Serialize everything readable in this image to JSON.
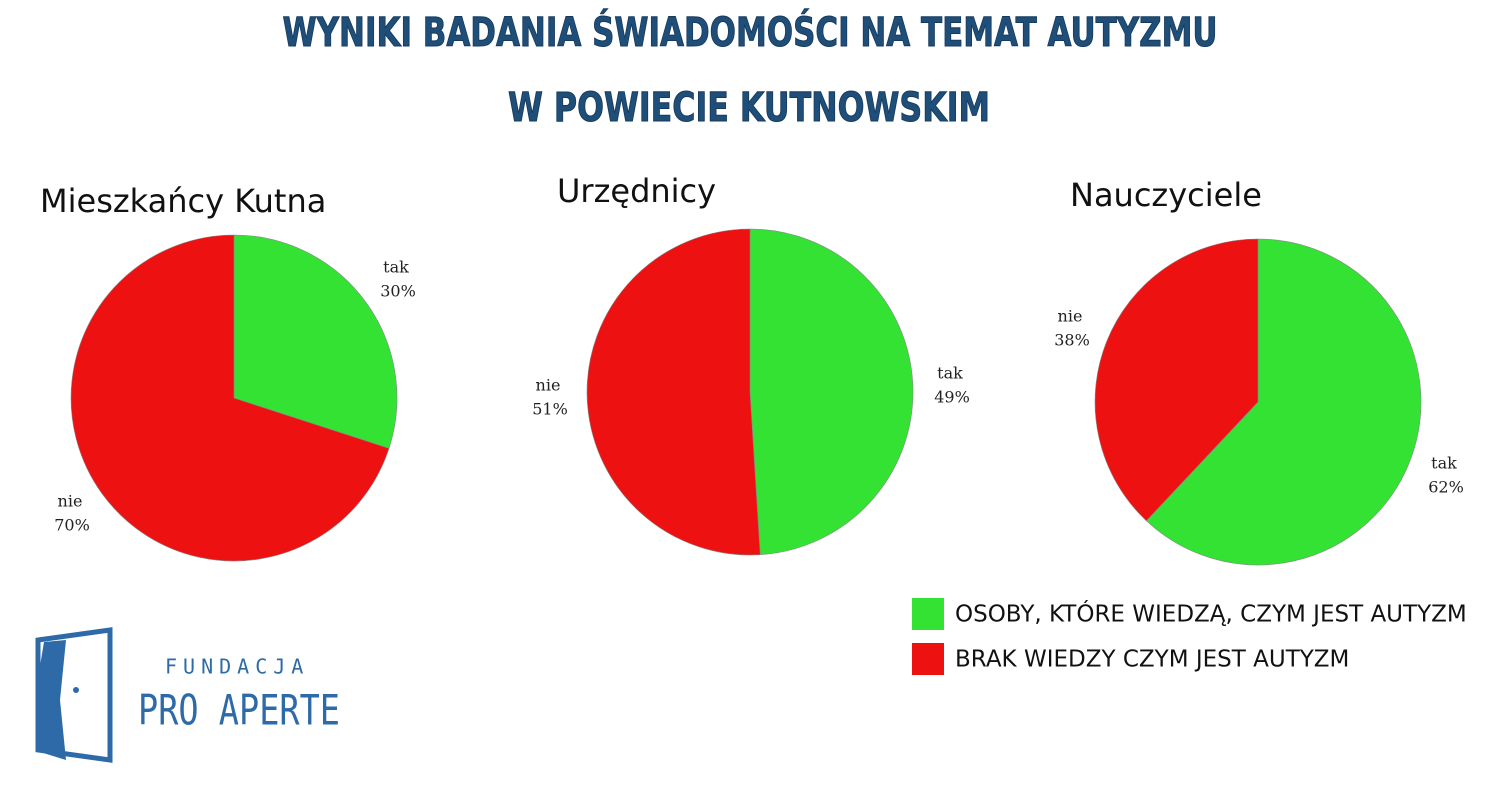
{
  "title_lines": [
    "WYNIKI BADANIA ŚWIADOMOŚCI NA TEMAT AUTYZMU",
    "W POWIECIE KUTNOWSKIM"
  ],
  "chart_data": [
    {
      "type": "pie",
      "title": "Mieszkańcy Kutna",
      "categories": [
        "tak",
        "nie"
      ],
      "values": [
        30,
        70
      ],
      "value_labels": [
        "30%",
        "70%"
      ],
      "colors": [
        "#33e233",
        "#ee1111"
      ]
    },
    {
      "type": "pie",
      "title": "Urzędnicy",
      "categories": [
        "tak",
        "nie"
      ],
      "values": [
        49,
        51
      ],
      "value_labels": [
        "49%",
        "51%"
      ],
      "colors": [
        "#33e233",
        "#ee1111"
      ]
    },
    {
      "type": "pie",
      "title": "Nauczyciele",
      "categories": [
        "tak",
        "nie"
      ],
      "values": [
        62,
        38
      ],
      "value_labels": [
        "62%",
        "38%"
      ],
      "colors": [
        "#33e233",
        "#ee1111"
      ]
    }
  ],
  "legend": [
    {
      "label": "OSOBY, KTÓRE WIEDZĄ, CZYM JEST AUTYZM",
      "color": "#33e233"
    },
    {
      "label": "BRAK WIEDZY CZYM JEST AUTYZM",
      "color": "#ee1111"
    }
  ],
  "logo": {
    "line1": "FUNDACJA",
    "line2": "PRO APERTE"
  }
}
